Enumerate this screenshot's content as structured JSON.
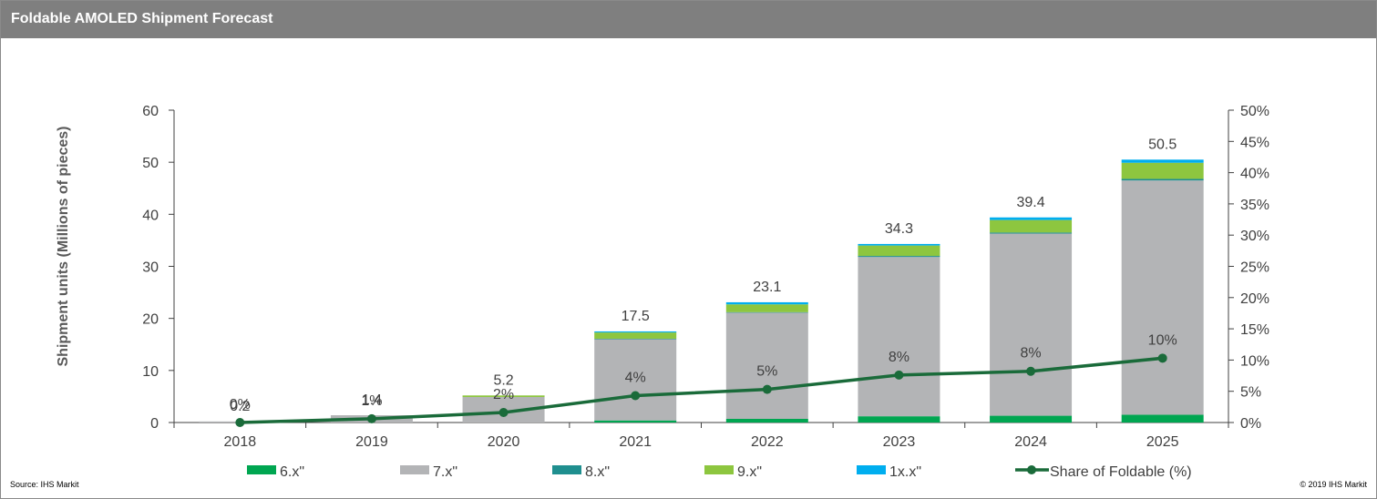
{
  "header": {
    "title": "Foldable AMOLED Shipment Forecast"
  },
  "footer": {
    "source": "Source: IHS Markit",
    "copyright": "© 2019 IHS Markit"
  },
  "chart_data": {
    "type": "bar",
    "stacked": true,
    "categories": [
      "2018",
      "2019",
      "2020",
      "2021",
      "2022",
      "2023",
      "2024",
      "2025"
    ],
    "series": [
      {
        "name": "6.x\"",
        "color": "#00a651",
        "values": [
          0,
          0,
          0,
          0.4,
          0.7,
          1.2,
          1.3,
          1.5
        ]
      },
      {
        "name": "7.x\"",
        "color": "#b3b4b6",
        "values": [
          0.2,
          1.4,
          4.9,
          15.6,
          20.4,
          30.6,
          35.0,
          45.0
        ]
      },
      {
        "name": "8.x\"",
        "color": "#1f8f8f",
        "values": [
          0,
          0,
          0,
          0.1,
          0.1,
          0.2,
          0.2,
          0.3
        ]
      },
      {
        "name": "9.x\"",
        "color": "#8dc63f",
        "values": [
          0,
          0,
          0.3,
          1.2,
          1.5,
          2.0,
          2.4,
          3.1
        ]
      },
      {
        "name": "1x.x\"",
        "color": "#00aeef",
        "values": [
          0,
          0,
          0,
          0.2,
          0.4,
          0.3,
          0.5,
          0.6
        ]
      }
    ],
    "totals": [
      "0.2",
      "1.4",
      "5.2",
      "17.5",
      "23.1",
      "34.3",
      "39.4",
      "50.5"
    ],
    "line": {
      "name": "Share of Foldable (%)",
      "color": "#1a6b3a",
      "values": [
        0,
        0.6,
        1.6,
        4.3,
        5.3,
        7.6,
        8.2,
        10.3
      ],
      "labels": [
        "0%",
        "1%",
        "2%",
        "4%",
        "5%",
        "8%",
        "8%",
        "10%"
      ]
    },
    "ylabel": "Shipment units (Millions of pieces)",
    "ylim": [
      0,
      60
    ],
    "yticks": [
      "0",
      "10",
      "20",
      "30",
      "40",
      "50",
      "60"
    ],
    "y2lim": [
      0,
      50
    ],
    "y2ticks": [
      "0%",
      "5%",
      "10%",
      "15%",
      "20%",
      "25%",
      "30%",
      "35%",
      "40%",
      "45%",
      "50%"
    ],
    "legend_position": "bottom",
    "grid": false
  }
}
